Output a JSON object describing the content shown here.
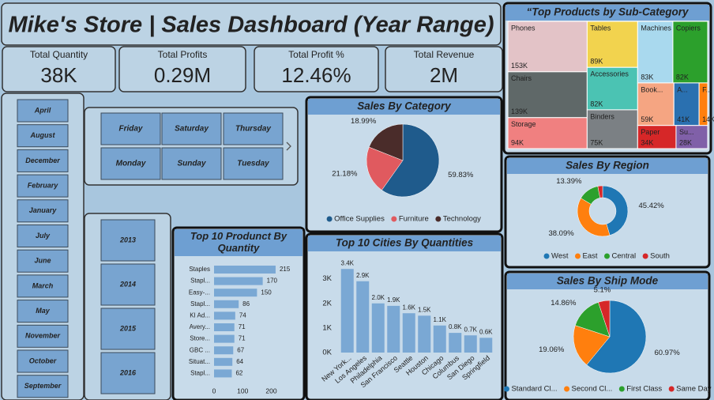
{
  "header": {
    "title": "Mike's Store | Sales Dashboard (Year Range)"
  },
  "kpis": [
    {
      "label": "Total Quantity",
      "value": "38K"
    },
    {
      "label": "Total Profits",
      "value": "0.29M"
    },
    {
      "label": "Total Profit %",
      "value": "12.46%"
    },
    {
      "label": "Total Revenue",
      "value": "2M"
    }
  ],
  "slicers": {
    "months": [
      "April",
      "August",
      "December",
      "February",
      "January",
      "July",
      "June",
      "March",
      "May",
      "November",
      "October",
      "September"
    ],
    "days": [
      "Friday",
      "Saturday",
      "Thursday",
      "Monday",
      "Sunday",
      "Tuesday"
    ],
    "years": [
      "2013",
      "2014",
      "2015",
      "2016"
    ]
  },
  "chart_data": [
    {
      "type": "treemap",
      "title": "“Top Products by Sub-Category",
      "categories": [
        "Phones",
        "Chairs",
        "Storage",
        "Tables",
        "Accessories",
        "Binders",
        "Machines",
        "Copiers",
        "Book...",
        "A...",
        "F...",
        "Paper",
        "Su..."
      ],
      "values": [
        153000,
        139000,
        94000,
        89000,
        82000,
        75000,
        83000,
        82000,
        59000,
        41000,
        14000,
        34000,
        28000
      ],
      "value_labels": [
        "153K",
        "139K",
        "94K",
        "89K",
        "82K",
        "75K",
        "83K",
        "82K",
        "59K",
        "41K",
        "14K",
        "34K",
        "28K"
      ],
      "colors": [
        "#e3c3c7",
        "#5f6868",
        "#f08080",
        "#f2d34e",
        "#4bc3b3",
        "#7b8084",
        "#a9d9ee",
        "#2ca02c",
        "#f5a582",
        "#2a70b0",
        "#ff7f0e",
        "#d62728",
        "#8060a8"
      ]
    },
    {
      "type": "pie",
      "title": "Sales By Category",
      "categories": [
        "Office Supplies",
        "Furniture",
        "Technology"
      ],
      "values": [
        59.83,
        21.18,
        18.99
      ],
      "value_labels": [
        "59.83%",
        "21.18%",
        "18.99%"
      ],
      "colors": [
        "#1f5b8c",
        "#e05a5f",
        "#4a2c2a"
      ]
    },
    {
      "type": "hbar",
      "title": "Top 10 Produnct By Quantity",
      "categories": [
        "Staples",
        "Stapl...",
        "Easy-...",
        "Stapl...",
        "KI Ad...",
        "Avery...",
        "Store...",
        "GBC ...",
        "Situat...",
        "Stapl..."
      ],
      "values": [
        215,
        170,
        150,
        86,
        74,
        71,
        71,
        67,
        64,
        62
      ],
      "color": "#7aa8d4",
      "xlim": [
        0,
        240
      ],
      "xticks": [
        0,
        100,
        200
      ]
    },
    {
      "type": "bar",
      "title": "Top 10 Cities By Quantities",
      "categories": [
        "New York...",
        "Los Angeles",
        "Philadelphia",
        "San Francisco",
        "Seattle",
        "Houston",
        "Chicago",
        "Columbus",
        "San Diego",
        "Springfield"
      ],
      "values": [
        3400,
        2900,
        2000,
        1900,
        1600,
        1500,
        1100,
        800,
        700,
        600
      ],
      "value_labels": [
        "3.4K",
        "2.9K",
        "2.0K",
        "1.9K",
        "1.6K",
        "1.5K",
        "1.1K",
        "0.8K",
        "0.7K",
        "0.6K"
      ],
      "color": "#7aa8d4",
      "ylim": [
        0,
        3600
      ],
      "yticks": [
        {
          "value": 0,
          "label": "0K"
        },
        {
          "value": 1000,
          "label": "1K"
        },
        {
          "value": 2000,
          "label": "2K"
        },
        {
          "value": 3000,
          "label": "3K"
        }
      ]
    },
    {
      "type": "donut",
      "title": "Sales By Region",
      "categories": [
        "West",
        "East",
        "Central",
        "South"
      ],
      "values": [
        45.42,
        38.09,
        13.39,
        3.1
      ],
      "value_labels": [
        "45.42%",
        "38.09%",
        "13.39%",
        null
      ],
      "colors": [
        "#1f77b4",
        "#ff7f0e",
        "#2ca02c",
        "#d62728"
      ]
    },
    {
      "type": "pie",
      "title": "Sales By Ship Mode",
      "categories": [
        "Standard Cl...",
        "Second Cl...",
        "First Class",
        "Same Day"
      ],
      "values": [
        60.97,
        19.06,
        14.86,
        5.1
      ],
      "value_labels": [
        "60.97%",
        "19.06%",
        "14.86%",
        "5.1%"
      ],
      "colors": [
        "#1f77b4",
        "#ff7f0e",
        "#2ca02c",
        "#d62728"
      ]
    }
  ]
}
